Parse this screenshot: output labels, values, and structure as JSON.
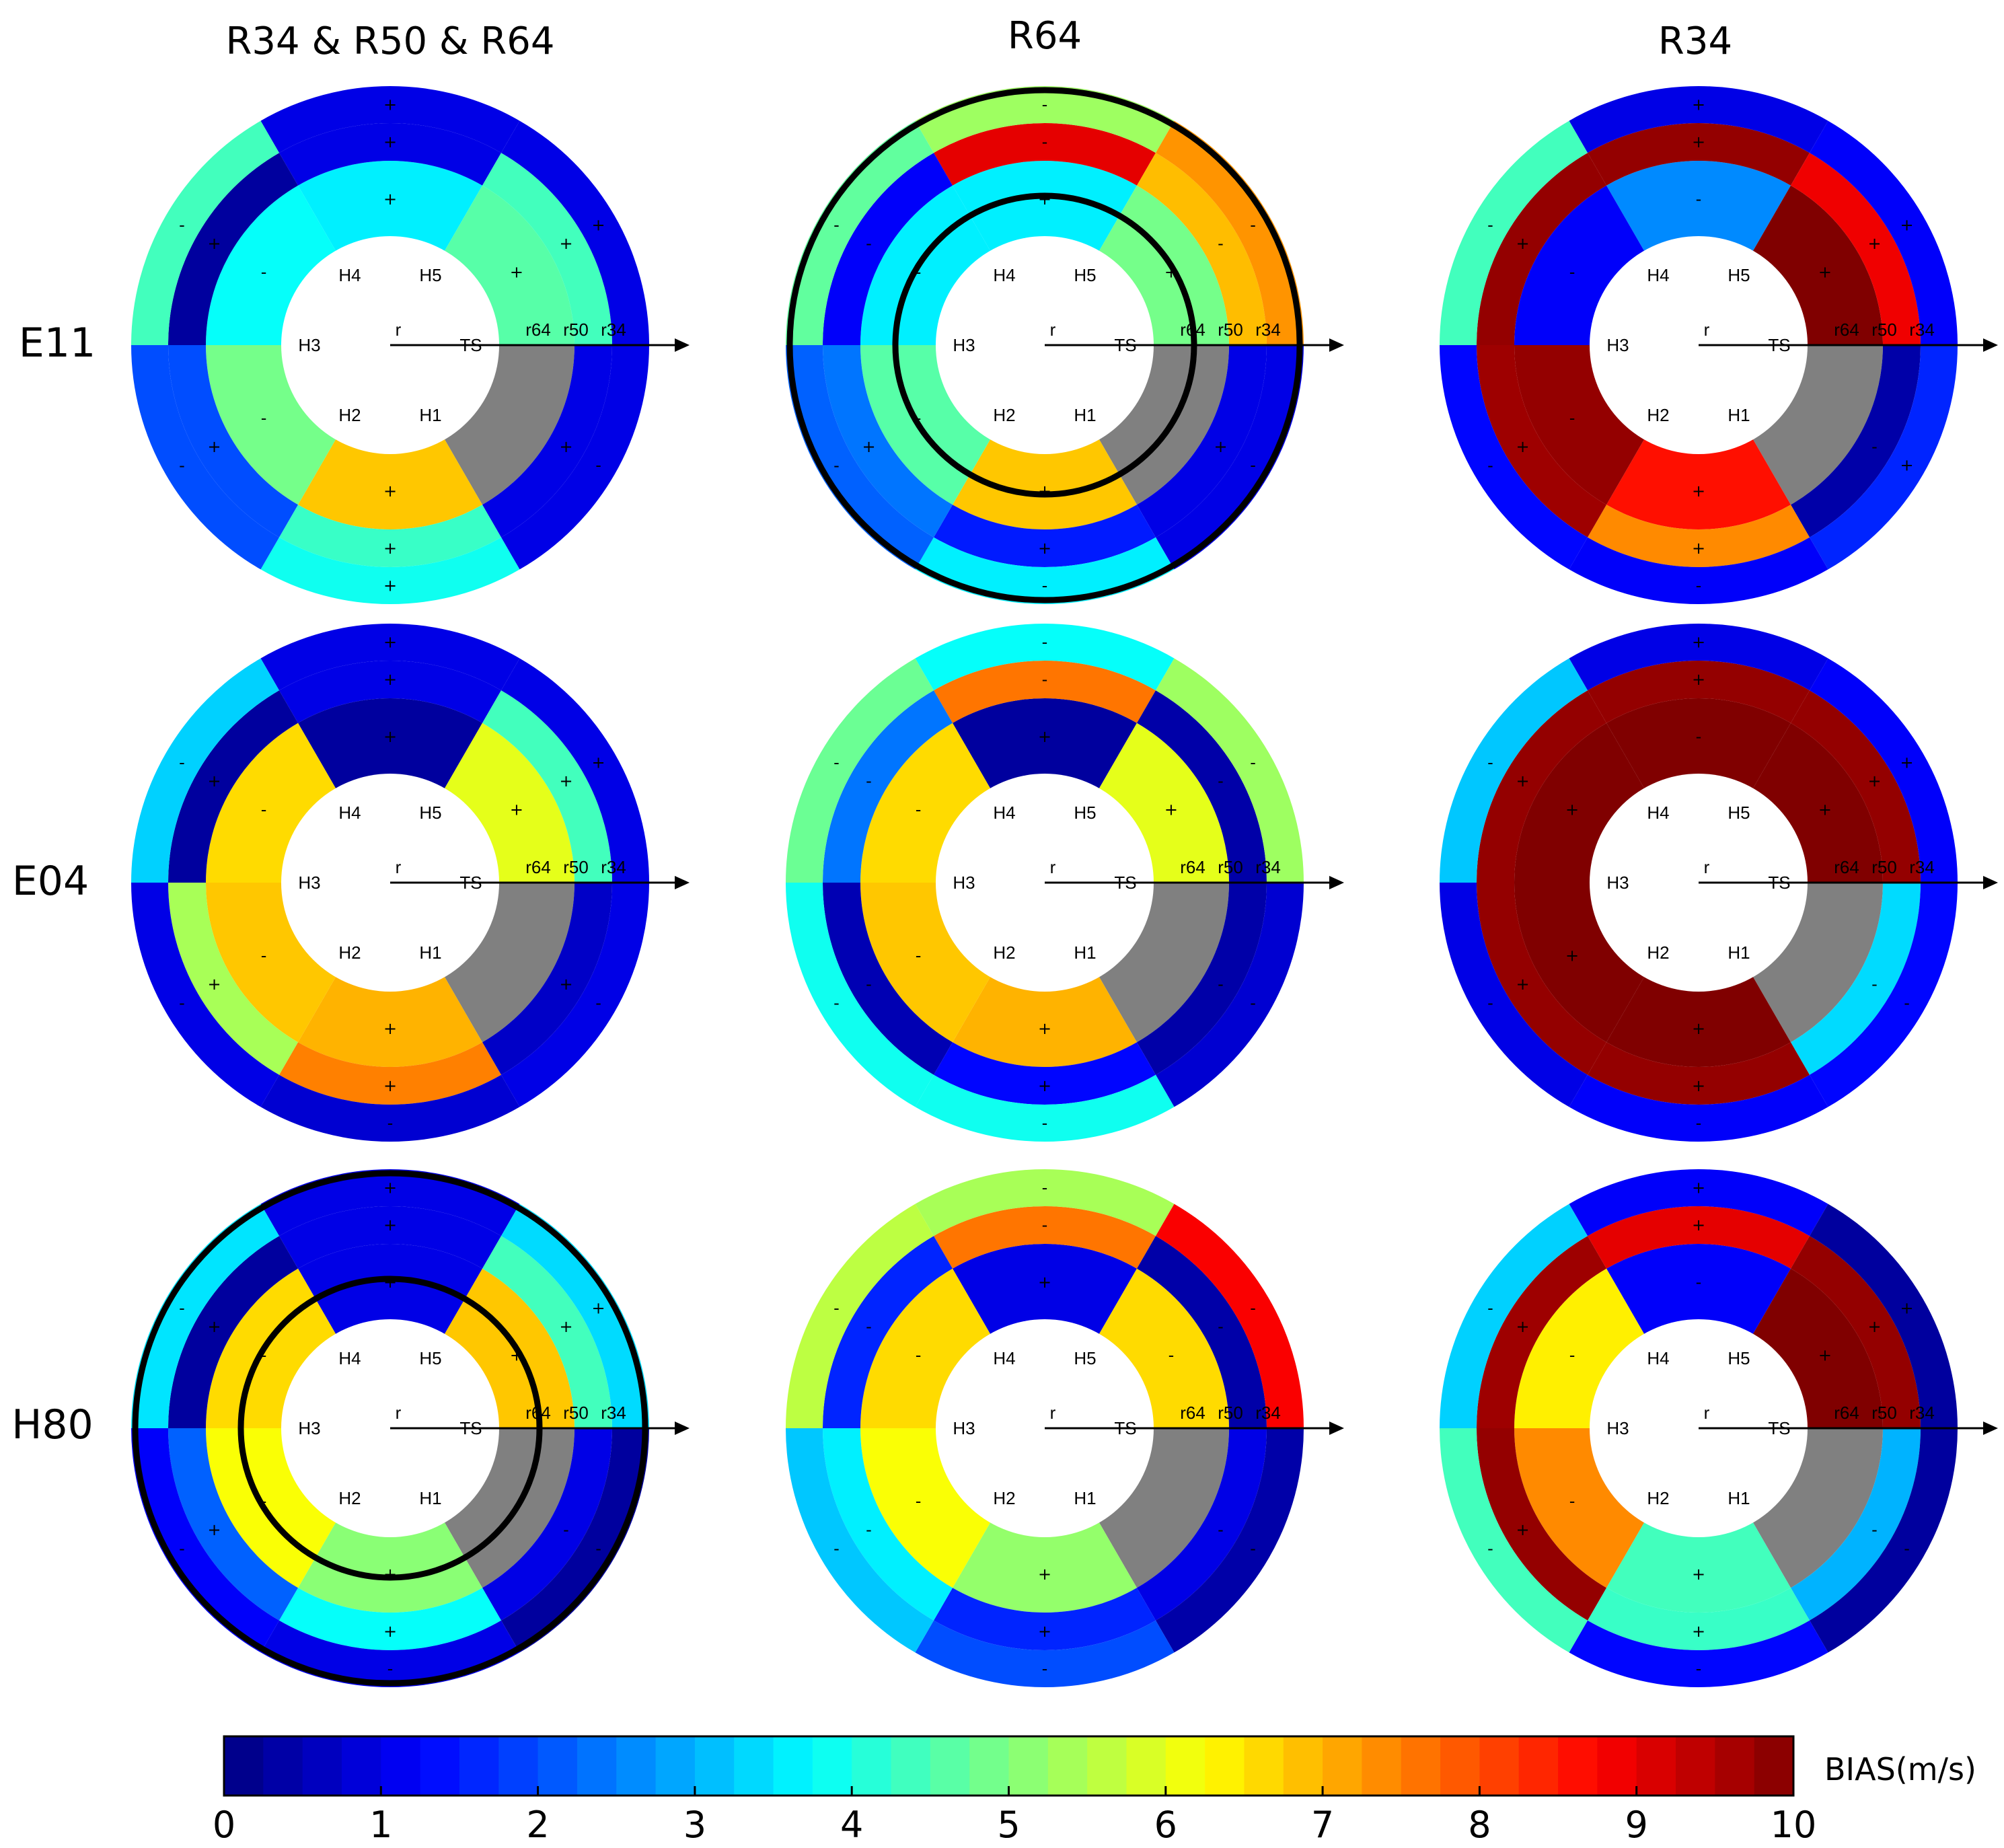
{
  "chart_data": {
    "type": "heatmap",
    "description_kind": "polar segmented bias diagrams",
    "column_titles": [
      "R34 & R50 & R64",
      "R64",
      "R34"
    ],
    "row_labels": [
      "E11",
      "E04",
      "H80"
    ],
    "ring_labels": [
      "r",
      "r64",
      "r50",
      "r34"
    ],
    "sector_labels": [
      "H4",
      "H5",
      "TS",
      "H1",
      "H2",
      "H3"
    ],
    "sector_order_note": "sectors listed from top going clockwise: H4, H5, TS, H1, H2, H3",
    "colorbar": {
      "label": "BIAS(m/s)",
      "range": [
        0,
        10
      ],
      "ticks": [
        "0",
        "1",
        "2",
        "3",
        "4",
        "5",
        "6",
        "7",
        "8",
        "9",
        "10"
      ],
      "colormap": "jet"
    },
    "panels": [
      {
        "row": "E11",
        "col": "R34 & R50 & R64",
        "rings": [
          {
            "ring": "r64",
            "values": [
              3.6,
              4.6,
              null,
              6.8,
              4.9,
              3.8
            ],
            "signs": [
              "+",
              "+",
              "",
              "+",
              "-",
              "-"
            ]
          },
          {
            "ring": "r50",
            "values": [
              1.0,
              4.4,
              1.0,
              4.3,
              2.0,
              0.3
            ],
            "signs": [
              "+",
              "+",
              "+",
              "+",
              "+",
              "+"
            ]
          },
          {
            "ring": "r34",
            "values": [
              1.0,
              1.0,
              1.0,
              3.9,
              2.0,
              4.4
            ],
            "signs": [
              "+",
              "+",
              "-",
              "+",
              "-",
              "-"
            ]
          }
        ],
        "outlined": false
      },
      {
        "row": "E11",
        "col": "R64",
        "rings": [
          {
            "ring": "r64",
            "values": [
              3.6,
              4.9,
              null,
              6.8,
              4.6,
              3.6
            ],
            "signs": [
              "+",
              "+",
              "",
              "+",
              "-",
              "-"
            ]
          },
          {
            "ring": "r50",
            "values": [
              9.0,
              6.9,
              1.0,
              1.5,
              2.4,
              1.2
            ],
            "signs": [
              "-",
              "-",
              "+",
              "+",
              "+",
              "-"
            ]
          },
          {
            "ring": "r34",
            "values": [
              5.3,
              7.3,
              1.0,
              3.6,
              2.2,
              4.7
            ],
            "signs": [
              "-",
              "-",
              "-",
              "-",
              "-",
              "-"
            ]
          }
        ],
        "outlined": true
      },
      {
        "row": "E11",
        "col": "R34",
        "rings": [
          {
            "ring": "r64",
            "values": [
              2.6,
              10.0,
              null,
              8.6,
              9.8,
              1.2
            ],
            "signs": [
              "-",
              "+",
              "",
              "+",
              "-",
              "-"
            ]
          },
          {
            "ring": "r50",
            "values": [
              9.8,
              8.9,
              0.4,
              7.4,
              9.7,
              9.8
            ],
            "signs": [
              "+",
              "+",
              "-",
              "+",
              "+",
              "+"
            ]
          },
          {
            "ring": "r34",
            "values": [
              1.0,
              1.2,
              1.6,
              1.2,
              1.3,
              4.4
            ],
            "signs": [
              "+",
              "+",
              "+",
              "-",
              "-",
              "-"
            ]
          }
        ],
        "outlined": false
      },
      {
        "row": "E04",
        "col": "R34 & R50 & R64",
        "rings": [
          {
            "ring": "r64",
            "values": [
              0.3,
              6.0,
              null,
              7.0,
              6.8,
              6.6
            ],
            "signs": [
              "+",
              "+",
              "",
              "+",
              "-",
              "-"
            ]
          },
          {
            "ring": "r50",
            "values": [
              1.0,
              4.4,
              0.7,
              7.5,
              5.4,
              0.3
            ],
            "signs": [
              "+",
              "+",
              "+",
              "+",
              "+",
              "+"
            ]
          },
          {
            "ring": "r34",
            "values": [
              1.0,
              1.0,
              1.0,
              0.8,
              1.0,
              3.3
            ],
            "signs": [
              "+",
              "+",
              "-",
              "-",
              "-",
              "-"
            ]
          }
        ],
        "outlined": false
      },
      {
        "row": "E04",
        "col": "R64",
        "rings": [
          {
            "ring": "r64",
            "values": [
              0.3,
              6.0,
              null,
              7.0,
              6.8,
              6.6
            ],
            "signs": [
              "+",
              "+",
              "",
              "+",
              "-",
              "-"
            ]
          },
          {
            "ring": "r50",
            "values": [
              7.6,
              0.4,
              0.4,
              1.3,
              0.5,
              2.4
            ],
            "signs": [
              "-",
              "-",
              "-",
              "+",
              "-",
              "-"
            ]
          },
          {
            "ring": "r34",
            "values": [
              3.8,
              5.3,
              0.8,
              3.9,
              3.9,
              4.8
            ],
            "signs": [
              "-",
              "-",
              "-",
              "-",
              "-",
              "-"
            ]
          }
        ],
        "outlined": false
      },
      {
        "row": "E04",
        "col": "R34",
        "rings": [
          {
            "ring": "r64",
            "values": [
              10.0,
              10.0,
              null,
              10.0,
              10.0,
              10.0
            ],
            "signs": [
              "-",
              "+",
              "",
              "+",
              "+",
              "+"
            ]
          },
          {
            "ring": "r50",
            "values": [
              9.8,
              9.8,
              3.4,
              9.8,
              9.8,
              9.8
            ],
            "signs": [
              "+",
              "+",
              "-",
              "+",
              "+",
              "+"
            ]
          },
          {
            "ring": "r34",
            "values": [
              1.0,
              1.2,
              1.3,
              1.2,
              1.0,
              3.2
            ],
            "signs": [
              "+",
              "+",
              "-",
              "-",
              "-",
              "-"
            ]
          }
        ],
        "outlined": false
      },
      {
        "row": "H80",
        "col": "R34 & R50 & R64",
        "rings": [
          {
            "ring": "r64",
            "values": [
              1.0,
              6.8,
              null,
              5.1,
              6.2,
              6.6
            ],
            "signs": [
              "+",
              "+",
              "",
              "+",
              "-",
              "-"
            ]
          },
          {
            "ring": "r50",
            "values": [
              1.0,
              4.4,
              1.0,
              3.8,
              2.2,
              0.3
            ],
            "signs": [
              "+",
              "+",
              "-",
              "+",
              "+",
              "+"
            ]
          },
          {
            "ring": "r34",
            "values": [
              1.0,
              3.4,
              0.3,
              1.0,
              1.2,
              3.5
            ],
            "signs": [
              "+",
              "+",
              "-",
              "-",
              "-",
              "-"
            ]
          }
        ],
        "outlined": true
      },
      {
        "row": "H80",
        "col": "R64",
        "rings": [
          {
            "ring": "r64",
            "values": [
              1.0,
              6.6,
              null,
              5.2,
              6.2,
              6.6
            ],
            "signs": [
              "+",
              "-",
              "",
              "+",
              "-",
              "-"
            ]
          },
          {
            "ring": "r50",
            "values": [
              7.6,
              0.4,
              1.0,
              1.6,
              3.6,
              1.6
            ],
            "signs": [
              "-",
              "-",
              "-",
              "+",
              "-",
              "-"
            ]
          },
          {
            "ring": "r34",
            "values": [
              5.4,
              8.8,
              0.4,
              2.0,
              3.2,
              5.6
            ],
            "signs": [
              "-",
              "-",
              "-",
              "-",
              "-",
              "-"
            ]
          }
        ],
        "outlined": false
      },
      {
        "row": "H80",
        "col": "R34",
        "rings": [
          {
            "ring": "r64",
            "values": [
              1.2,
              10.0,
              null,
              4.4,
              7.4,
              6.4
            ],
            "signs": [
              "-",
              "+",
              "",
              "+",
              "-",
              "-"
            ]
          },
          {
            "ring": "r50",
            "values": [
              9.0,
              9.8,
              3.0,
              4.3,
              9.8,
              9.7
            ],
            "signs": [
              "+",
              "+",
              "-",
              "+",
              "+",
              "+"
            ]
          },
          {
            "ring": "r34",
            "values": [
              1.2,
              0.3,
              0.3,
              1.3,
              4.4,
              3.3
            ],
            "signs": [
              "+",
              "+",
              "-",
              "-",
              "-",
              "-"
            ]
          }
        ],
        "outlined": false
      }
    ]
  }
}
